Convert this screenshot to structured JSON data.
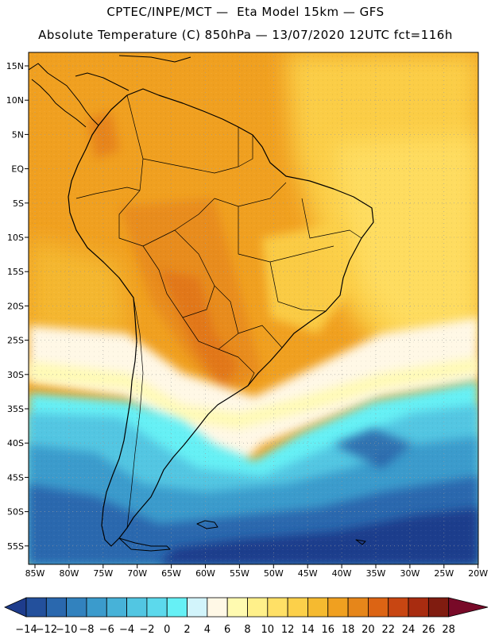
{
  "title_line1": "CPTEC/INPE/MCT —  Eta Model 15km — GFS",
  "title_line2": "Absolute Temperature (C) 850hPa — 13/07/2020 12UTC fct=116h",
  "lat_labels": [
    "15N",
    "10N",
    "5N",
    "EQ",
    "5S",
    "10S",
    "15S",
    "20S",
    "25S",
    "30S",
    "35S",
    "40S",
    "45S",
    "50S",
    "55S"
  ],
  "lon_labels": [
    "85W",
    "80W",
    "75W",
    "70W",
    "65W",
    "60W",
    "55W",
    "50W",
    "45W",
    "40W",
    "35W",
    "30W",
    "25W",
    "20W"
  ],
  "colorbar": {
    "labels": [
      "-14",
      "-12",
      "-10",
      "-8",
      "-6",
      "-4",
      "-2",
      "0",
      "2",
      "4",
      "6",
      "8",
      "10",
      "12",
      "14",
      "16",
      "18",
      "20",
      "22",
      "24",
      "26",
      "28"
    ],
    "colors": [
      "#1e3c8c",
      "#23509c",
      "#2a68ae",
      "#3282be",
      "#3b9bcc",
      "#47b2d8",
      "#52c6e2",
      "#5cd9ec",
      "#66f0f5",
      "#d2f4fb",
      "#fff8e6",
      "#fffab0",
      "#fff08a",
      "#ffe066",
      "#fcd04a",
      "#f5ba30",
      "#f0a020",
      "#e6861a",
      "#dc6414",
      "#c84612",
      "#a82c10",
      "#801c10",
      "#780a28"
    ]
  },
  "colors": {
    "coastline": "#000000",
    "grid": "#9a9a9a"
  }
}
